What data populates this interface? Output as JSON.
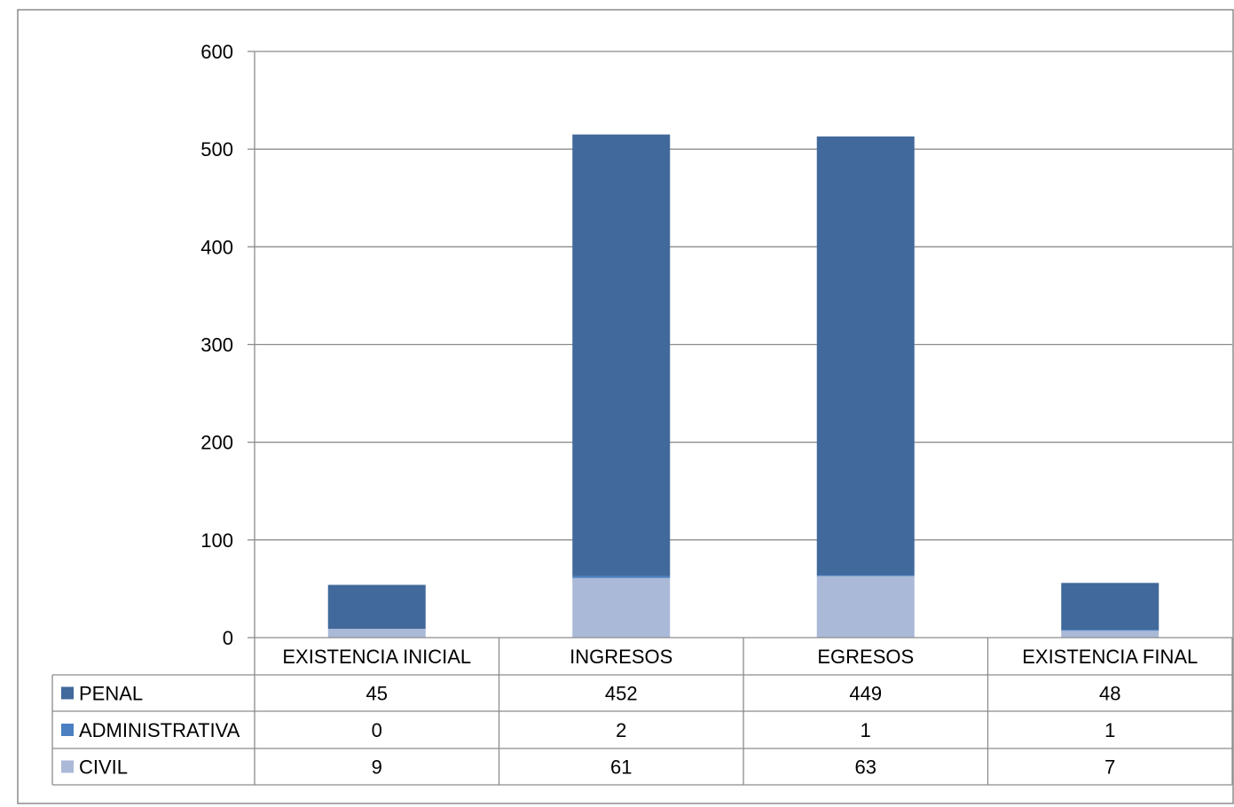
{
  "chart_data": {
    "type": "bar",
    "stacked": true,
    "categories": [
      "EXISTENCIA INICIAL",
      "INGRESOS",
      "EGRESOS",
      "EXISTENCIA FINAL"
    ],
    "series": [
      {
        "name": "PENAL",
        "values": [
          45,
          452,
          449,
          48
        ],
        "color": "#41699b"
      },
      {
        "name": "ADMINISTRATIVA",
        "values": [
          0,
          2,
          1,
          1
        ],
        "color": "#4a7fc1"
      },
      {
        "name": "CIVIL",
        "values": [
          9,
          61,
          63,
          7
        ],
        "color": "#aab9d7"
      }
    ],
    "stack_order_bottom_to_top": [
      "CIVIL",
      "ADMINISTRATIVA",
      "PENAL"
    ],
    "yticks": [
      "0",
      "100",
      "200",
      "300",
      "400",
      "500",
      "600"
    ],
    "ylim": [
      0,
      600
    ],
    "grid": true,
    "legend": "data-table"
  }
}
